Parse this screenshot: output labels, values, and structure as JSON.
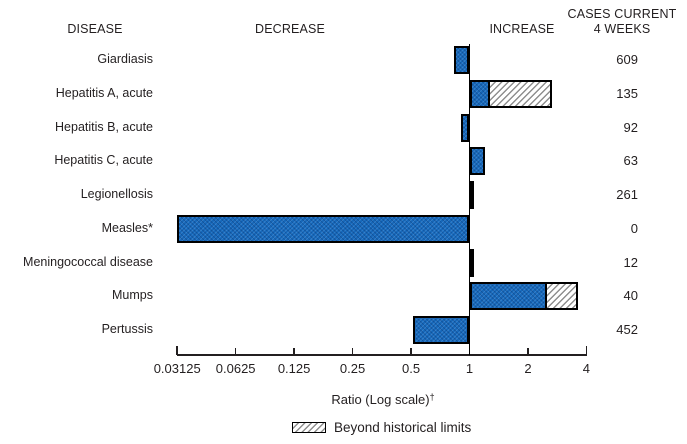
{
  "header": {
    "disease": "DISEASE",
    "decrease": "DECREASE",
    "increase": "INCREASE",
    "cases_line1": "CASES CURRENT",
    "cases_line2": "4 WEEKS"
  },
  "axis": {
    "label": "Ratio (Log scale)",
    "dagger": "†"
  },
  "legend": {
    "beyond_label": "Beyond historical limits"
  },
  "colors": {
    "bar_fill": "#1668ba",
    "bar_border": "#000000",
    "hatch_line": "#8f8f8f",
    "text": "#231f20"
  },
  "chart_data": {
    "type": "bar",
    "orientation": "horizontal",
    "x_scale": "log2",
    "xlim": [
      0.03125,
      4
    ],
    "baseline_ratio": 1,
    "xlabel": "Ratio (Log scale)†",
    "tick_values": [
      0.03125,
      0.0625,
      0.125,
      0.25,
      0.5,
      1,
      2,
      4
    ],
    "tick_labels": [
      "0.03125",
      "0.0625",
      "0.125",
      "0.25",
      "0.5",
      "1",
      "2",
      "4"
    ],
    "legend_note": "Beyond historical limits",
    "rows": [
      {
        "disease": "Giardiasis",
        "ratio": 0.83,
        "beyond_historical_ratio": null,
        "cases_current_4_weeks": 609
      },
      {
        "disease": "Hepatitis A, acute",
        "ratio": 1.28,
        "beyond_historical_ratio": 2.67,
        "cases_current_4_weeks": 135
      },
      {
        "disease": "Hepatitis B, acute",
        "ratio": 0.9,
        "beyond_historical_ratio": null,
        "cases_current_4_weeks": 92
      },
      {
        "disease": "Hepatitis C, acute",
        "ratio": 1.2,
        "beyond_historical_ratio": null,
        "cases_current_4_weeks": 63
      },
      {
        "disease": "Legionellosis",
        "ratio": 1.01,
        "beyond_historical_ratio": null,
        "cases_current_4_weeks": 261
      },
      {
        "disease": "Measles*",
        "ratio": 0.03125,
        "beyond_historical_ratio": null,
        "cases_current_4_weeks": 0
      },
      {
        "disease": "Meningococcal disease",
        "ratio": 1.04,
        "beyond_historical_ratio": null,
        "cases_current_4_weeks": 12
      },
      {
        "disease": "Mumps",
        "ratio": 2.51,
        "beyond_historical_ratio": 3.6,
        "cases_current_4_weeks": 40
      },
      {
        "disease": "Pertussis",
        "ratio": 0.51,
        "beyond_historical_ratio": null,
        "cases_current_4_weeks": 452
      }
    ]
  }
}
